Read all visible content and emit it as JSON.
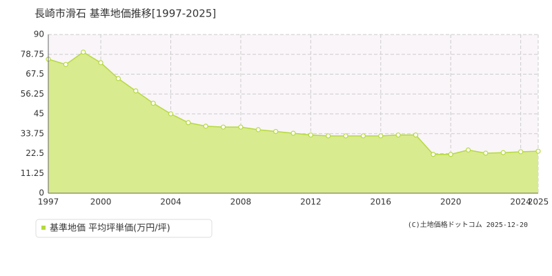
{
  "chart_data": {
    "type": "area",
    "title": "長崎市滑石 基準地価推移[1997-2025]",
    "x": [
      1997,
      1998,
      1999,
      2000,
      2001,
      2002,
      2003,
      2004,
      2005,
      2006,
      2007,
      2008,
      2009,
      2010,
      2011,
      2012,
      2013,
      2014,
      2015,
      2016,
      2017,
      2018,
      2019,
      2020,
      2021,
      2022,
      2023,
      2024,
      2025
    ],
    "series": [
      {
        "name": "基準地価 平均坪単価(万円/坪)",
        "color": "#b5d93e",
        "values": [
          76,
          73,
          80,
          74,
          65,
          58,
          51,
          45,
          40,
          38,
          37.5,
          37.5,
          36,
          35,
          34,
          33,
          32.5,
          32.5,
          32.5,
          32.5,
          33,
          33,
          22,
          22,
          24.5,
          22.7,
          23,
          23.5,
          23.8
        ]
      }
    ],
    "xlim": [
      1997,
      2025
    ],
    "xticks": [
      1997,
      2000,
      2004,
      2008,
      2012,
      2016,
      2020,
      2024,
      2025
    ],
    "ylim": [
      0,
      90
    ],
    "yticks": [
      0,
      11.25,
      22.5,
      33.75,
      45,
      56.25,
      67.5,
      78.75,
      90
    ],
    "grid": true,
    "credit": "(C)土地価格ドットコム 2025-12-20"
  }
}
